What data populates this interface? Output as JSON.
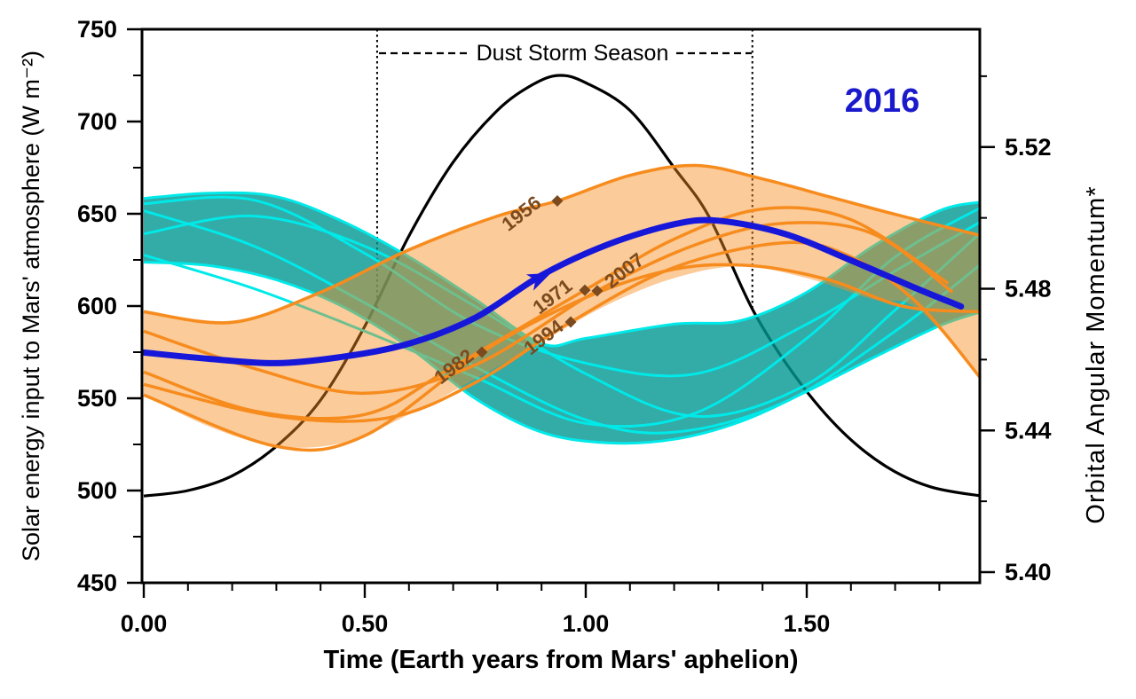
{
  "figure_labels": {
    "current_year_label": "2016",
    "dust_storm_label": "Dust Storm Season",
    "x_axis_title": "Time (Earth years from Mars' aphelion)",
    "y_left_title": "Solar energy input to Mars' atmosphere  (W m⁻²)",
    "y_right_title": "Orbital Angular Momentum*"
  },
  "colors": {
    "black_curve": "#000000",
    "blue_curve": "#1717D9",
    "blue_text": "#1A1ACC",
    "orange_line": "#F78C1E",
    "orange_fill": "rgba(247,140,30,0.45)",
    "cyan_line": "#00E9E9",
    "teal_fill": "rgba(0,150,145,0.8)",
    "year_marker": "#7B4A1E"
  },
  "chart_data": {
    "type": "line",
    "x_axis": {
      "title": "Time (Earth years from Mars' aphelion)",
      "range": [
        0,
        1.896
      ],
      "major_ticks": [
        0,
        0.5,
        1.0,
        1.5
      ],
      "major_labels": [
        "0.00",
        "0.50",
        "1.00",
        "1.50"
      ],
      "minor_ticks": [
        0.1,
        0.2,
        0.3,
        0.4,
        0.6,
        0.7,
        0.8,
        0.9,
        1.1,
        1.2,
        1.3,
        1.4,
        1.6,
        1.7,
        1.8
      ]
    },
    "y_left_axis": {
      "title": "Solar energy input to Mars' atmosphere  (W m⁻²)",
      "range": [
        450,
        750
      ],
      "major_ticks": [
        750,
        700,
        650,
        600,
        550,
        500,
        450
      ],
      "major_labels": [
        "750",
        "700",
        "650",
        "600",
        "550",
        "500",
        "450"
      ],
      "minor_ticks": [
        725,
        675,
        625,
        575,
        525,
        475
      ]
    },
    "y_right_axis": {
      "title": "Orbital Angular Momentum*",
      "major_ticks": [
        5.52,
        5.48,
        5.44,
        5.4
      ],
      "major_labels": [
        "5.52",
        "5.48",
        "5.44",
        "5.40"
      ],
      "minor_ticks": [
        5.54,
        5.5,
        5.46,
        5.42
      ]
    },
    "annotations": {
      "dust_storm_season": {
        "label": "Dust Storm Season",
        "t_start": 0.528,
        "t_end": 1.377,
        "marker_line_bottom_wm2": 598
      },
      "current_year": {
        "label": "2016"
      }
    },
    "solar_input_curve": {
      "name": "solar-energy-input",
      "axis": "left",
      "units": "W m-2",
      "points": [
        [
          0,
          497
        ],
        [
          0.1,
          500
        ],
        [
          0.2,
          508
        ],
        [
          0.3,
          524
        ],
        [
          0.4,
          549
        ],
        [
          0.5,
          589
        ],
        [
          0.6,
          638
        ],
        [
          0.7,
          678
        ],
        [
          0.8,
          706
        ],
        [
          0.88,
          720
        ],
        [
          0.94,
          725
        ],
        [
          1.0,
          721
        ],
        [
          1.1,
          706
        ],
        [
          1.2,
          675
        ],
        [
          1.28,
          648
        ],
        [
          1.38,
          597
        ],
        [
          1.48,
          560
        ],
        [
          1.58,
          532
        ],
        [
          1.68,
          513
        ],
        [
          1.78,
          502
        ],
        [
          1.895,
          497
        ]
      ]
    },
    "curve_2016": {
      "name": "orbital-angular-momentum-2016",
      "axis": "right",
      "points": [
        [
          0,
          5.462
        ],
        [
          0.15,
          5.4602
        ],
        [
          0.3,
          5.459
        ],
        [
          0.45,
          5.4608
        ],
        [
          0.6,
          5.4645
        ],
        [
          0.75,
          5.4718
        ],
        [
          0.9,
          5.4838
        ],
        [
          1.05,
          5.4925
        ],
        [
          1.2,
          5.4982
        ],
        [
          1.3,
          5.4992
        ],
        [
          1.45,
          5.4955
        ],
        [
          1.6,
          5.488
        ],
        [
          1.75,
          5.48
        ],
        [
          1.849,
          5.475
        ]
      ],
      "arrow_t": 0.893
    },
    "dust_storm_years": {
      "axis": "right",
      "band": {
        "top": [
          [
            0,
            5.474
          ],
          [
            0.2,
            5.471
          ],
          [
            0.4,
            5.479
          ],
          [
            0.6,
            5.4915
          ],
          [
            0.8,
            5.5008
          ],
          [
            0.93,
            5.505
          ],
          [
            1.1,
            5.5122
          ],
          [
            1.25,
            5.515
          ],
          [
            1.4,
            5.5112
          ],
          [
            1.55,
            5.5062
          ],
          [
            1.7,
            5.5012
          ],
          [
            1.895,
            5.4952
          ]
        ],
        "bottom": [
          [
            0,
            5.45
          ],
          [
            0.15,
            5.441
          ],
          [
            0.3,
            5.4355
          ],
          [
            0.45,
            5.4365
          ],
          [
            0.6,
            5.4445
          ],
          [
            0.75,
            5.4545
          ],
          [
            0.9,
            5.465
          ],
          [
            1.05,
            5.4755
          ],
          [
            1.2,
            5.483
          ],
          [
            1.35,
            5.4863
          ],
          [
            1.5,
            5.483
          ],
          [
            1.65,
            5.477
          ],
          [
            1.75,
            5.4745
          ],
          [
            1.895,
            5.4545
          ]
        ]
      },
      "curves": [
        {
          "year": "1956",
          "points": [
            [
              0,
              5.4735
            ],
            [
              0.2,
              5.4705
            ],
            [
              0.4,
              5.479
            ],
            [
              0.6,
              5.491
            ],
            [
              0.8,
              5.5005
            ],
            [
              0.9357,
              5.5048
            ],
            [
              1.1,
              5.512
            ],
            [
              1.25,
              5.5148
            ],
            [
              1.4,
              5.511
            ],
            [
              1.55,
              5.506
            ],
            [
              1.7,
              5.501
            ],
            [
              1.895,
              5.495
            ]
          ]
        },
        {
          "year": "1971",
          "points": [
            [
              0,
              5.4565
            ],
            [
              0.25,
              5.4455
            ],
            [
              0.5,
              5.4445
            ],
            [
              0.7,
              5.458
            ],
            [
              0.998,
              5.4796
            ],
            [
              1.2,
              5.494
            ],
            [
              1.4,
              5.5025
            ],
            [
              1.6,
              5.4995
            ],
            [
              1.82,
              5.4815
            ]
          ]
        },
        {
          "year": "2007",
          "points": [
            [
              0,
              5.468
            ],
            [
              0.25,
              5.4575
            ],
            [
              0.5,
              5.4505
            ],
            [
              0.75,
              5.4585
            ],
            [
              1.026,
              5.4794
            ],
            [
              1.25,
              5.4925
            ],
            [
              1.45,
              5.4985
            ],
            [
              1.65,
              5.4955
            ],
            [
              1.83,
              5.479
            ]
          ]
        },
        {
          "year": "1994",
          "points": [
            [
              0,
              5.453
            ],
            [
              0.3,
              5.444
            ],
            [
              0.55,
              5.4435
            ],
            [
              0.75,
              5.4535
            ],
            [
              0.966,
              5.4706
            ],
            [
              1.2,
              5.486
            ],
            [
              1.45,
              5.493
            ],
            [
              1.6,
              5.489
            ],
            [
              1.75,
              5.476
            ],
            [
              1.895,
              5.4545
            ]
          ]
        },
        {
          "year": "1982",
          "points": [
            [
              0,
              5.45
            ],
            [
              0.3,
              5.4355
            ],
            [
              0.5,
              5.4385
            ],
            [
              0.765,
              5.4621
            ],
            [
              1.0,
              5.4775
            ],
            [
              1.2,
              5.4855
            ],
            [
              1.375,
              5.4865
            ],
            [
              1.55,
              5.4825
            ],
            [
              1.72,
              5.475
            ],
            [
              1.895,
              5.4735
            ]
          ]
        }
      ],
      "year_markers": [
        {
          "label": "1956",
          "t": 0.9357,
          "value": 5.5048,
          "label_offset": [
            -36,
            20
          ]
        },
        {
          "label": "1971",
          "t": 0.998,
          "value": 5.4796,
          "label_offset": [
            -32,
            13
          ]
        },
        {
          "label": "2007",
          "t": 1.026,
          "value": 5.4794,
          "label_offset": [
            35,
            -17
          ]
        },
        {
          "label": "1994",
          "t": 0.966,
          "value": 5.4706,
          "label_offset": [
            -26,
            23
          ]
        },
        {
          "label": "1982",
          "t": 0.765,
          "value": 5.4621,
          "label_offset": [
            -27,
            22
          ]
        }
      ]
    },
    "non_storm_years": {
      "axis": "right",
      "band": {
        "top": [
          [
            0,
            5.5055
          ],
          [
            0.15,
            5.507
          ],
          [
            0.3,
            5.506
          ],
          [
            0.45,
            5.499
          ],
          [
            0.6,
            5.489
          ],
          [
            0.75,
            5.477
          ],
          [
            0.9,
            5.4645
          ],
          [
            1.0,
            5.466
          ],
          [
            1.2,
            5.47
          ],
          [
            1.35,
            5.471
          ],
          [
            1.5,
            5.479
          ],
          [
            1.65,
            5.492
          ],
          [
            1.8,
            5.502
          ],
          [
            1.895,
            5.5045
          ]
        ],
        "bottom": [
          [
            0,
            5.4875
          ],
          [
            0.15,
            5.4865
          ],
          [
            0.3,
            5.4825
          ],
          [
            0.45,
            5.475
          ],
          [
            0.6,
            5.4635
          ],
          [
            0.75,
            5.449
          ],
          [
            0.9,
            5.4395
          ],
          [
            1.05,
            5.4365
          ],
          [
            1.2,
            5.4375
          ],
          [
            1.35,
            5.4425
          ],
          [
            1.5,
            5.451
          ],
          [
            1.65,
            5.4605
          ],
          [
            1.8,
            5.4695
          ],
          [
            1.895,
            5.4735
          ]
        ]
      },
      "curves": [
        {
          "name": "non-storm-curve-1",
          "points": [
            [
              0,
              5.502
            ],
            [
              0.25,
              5.492
            ],
            [
              0.5,
              5.476
            ],
            [
              0.75,
              5.458
            ],
            [
              1.0,
              5.443
            ],
            [
              1.2,
              5.4395
            ],
            [
              1.45,
              5.448
            ],
            [
              1.7,
              5.468
            ],
            [
              1.895,
              5.487
            ]
          ]
        },
        {
          "name": "non-storm-curve-2",
          "points": [
            [
              0,
              5.4955
            ],
            [
              0.25,
              5.5005
            ],
            [
              0.5,
              5.492
            ],
            [
              0.75,
              5.475
            ],
            [
              1.0,
              5.456
            ],
            [
              1.25,
              5.444
            ],
            [
              1.5,
              5.453
            ],
            [
              1.7,
              5.474
            ],
            [
              1.895,
              5.496
            ]
          ]
        },
        {
          "name": "non-storm-curve-3",
          "points": [
            [
              0,
              5.4895
            ],
            [
              0.25,
              5.48
            ],
            [
              0.5,
              5.468
            ],
            [
              0.75,
              5.455
            ],
            [
              1.0,
              5.442
            ],
            [
              1.25,
              5.445
            ],
            [
              1.5,
              5.466
            ],
            [
              1.7,
              5.489
            ],
            [
              1.895,
              5.503
            ]
          ]
        },
        {
          "name": "non-storm-curve-4",
          "points": [
            [
              0,
              5.504
            ],
            [
              0.25,
              5.505
            ],
            [
              0.5,
              5.49
            ],
            [
              0.75,
              5.47
            ],
            [
              1.0,
              5.459
            ],
            [
              1.25,
              5.456
            ],
            [
              1.5,
              5.47
            ],
            [
              1.7,
              5.485
            ],
            [
              1.895,
              5.499
            ]
          ]
        }
      ]
    }
  }
}
